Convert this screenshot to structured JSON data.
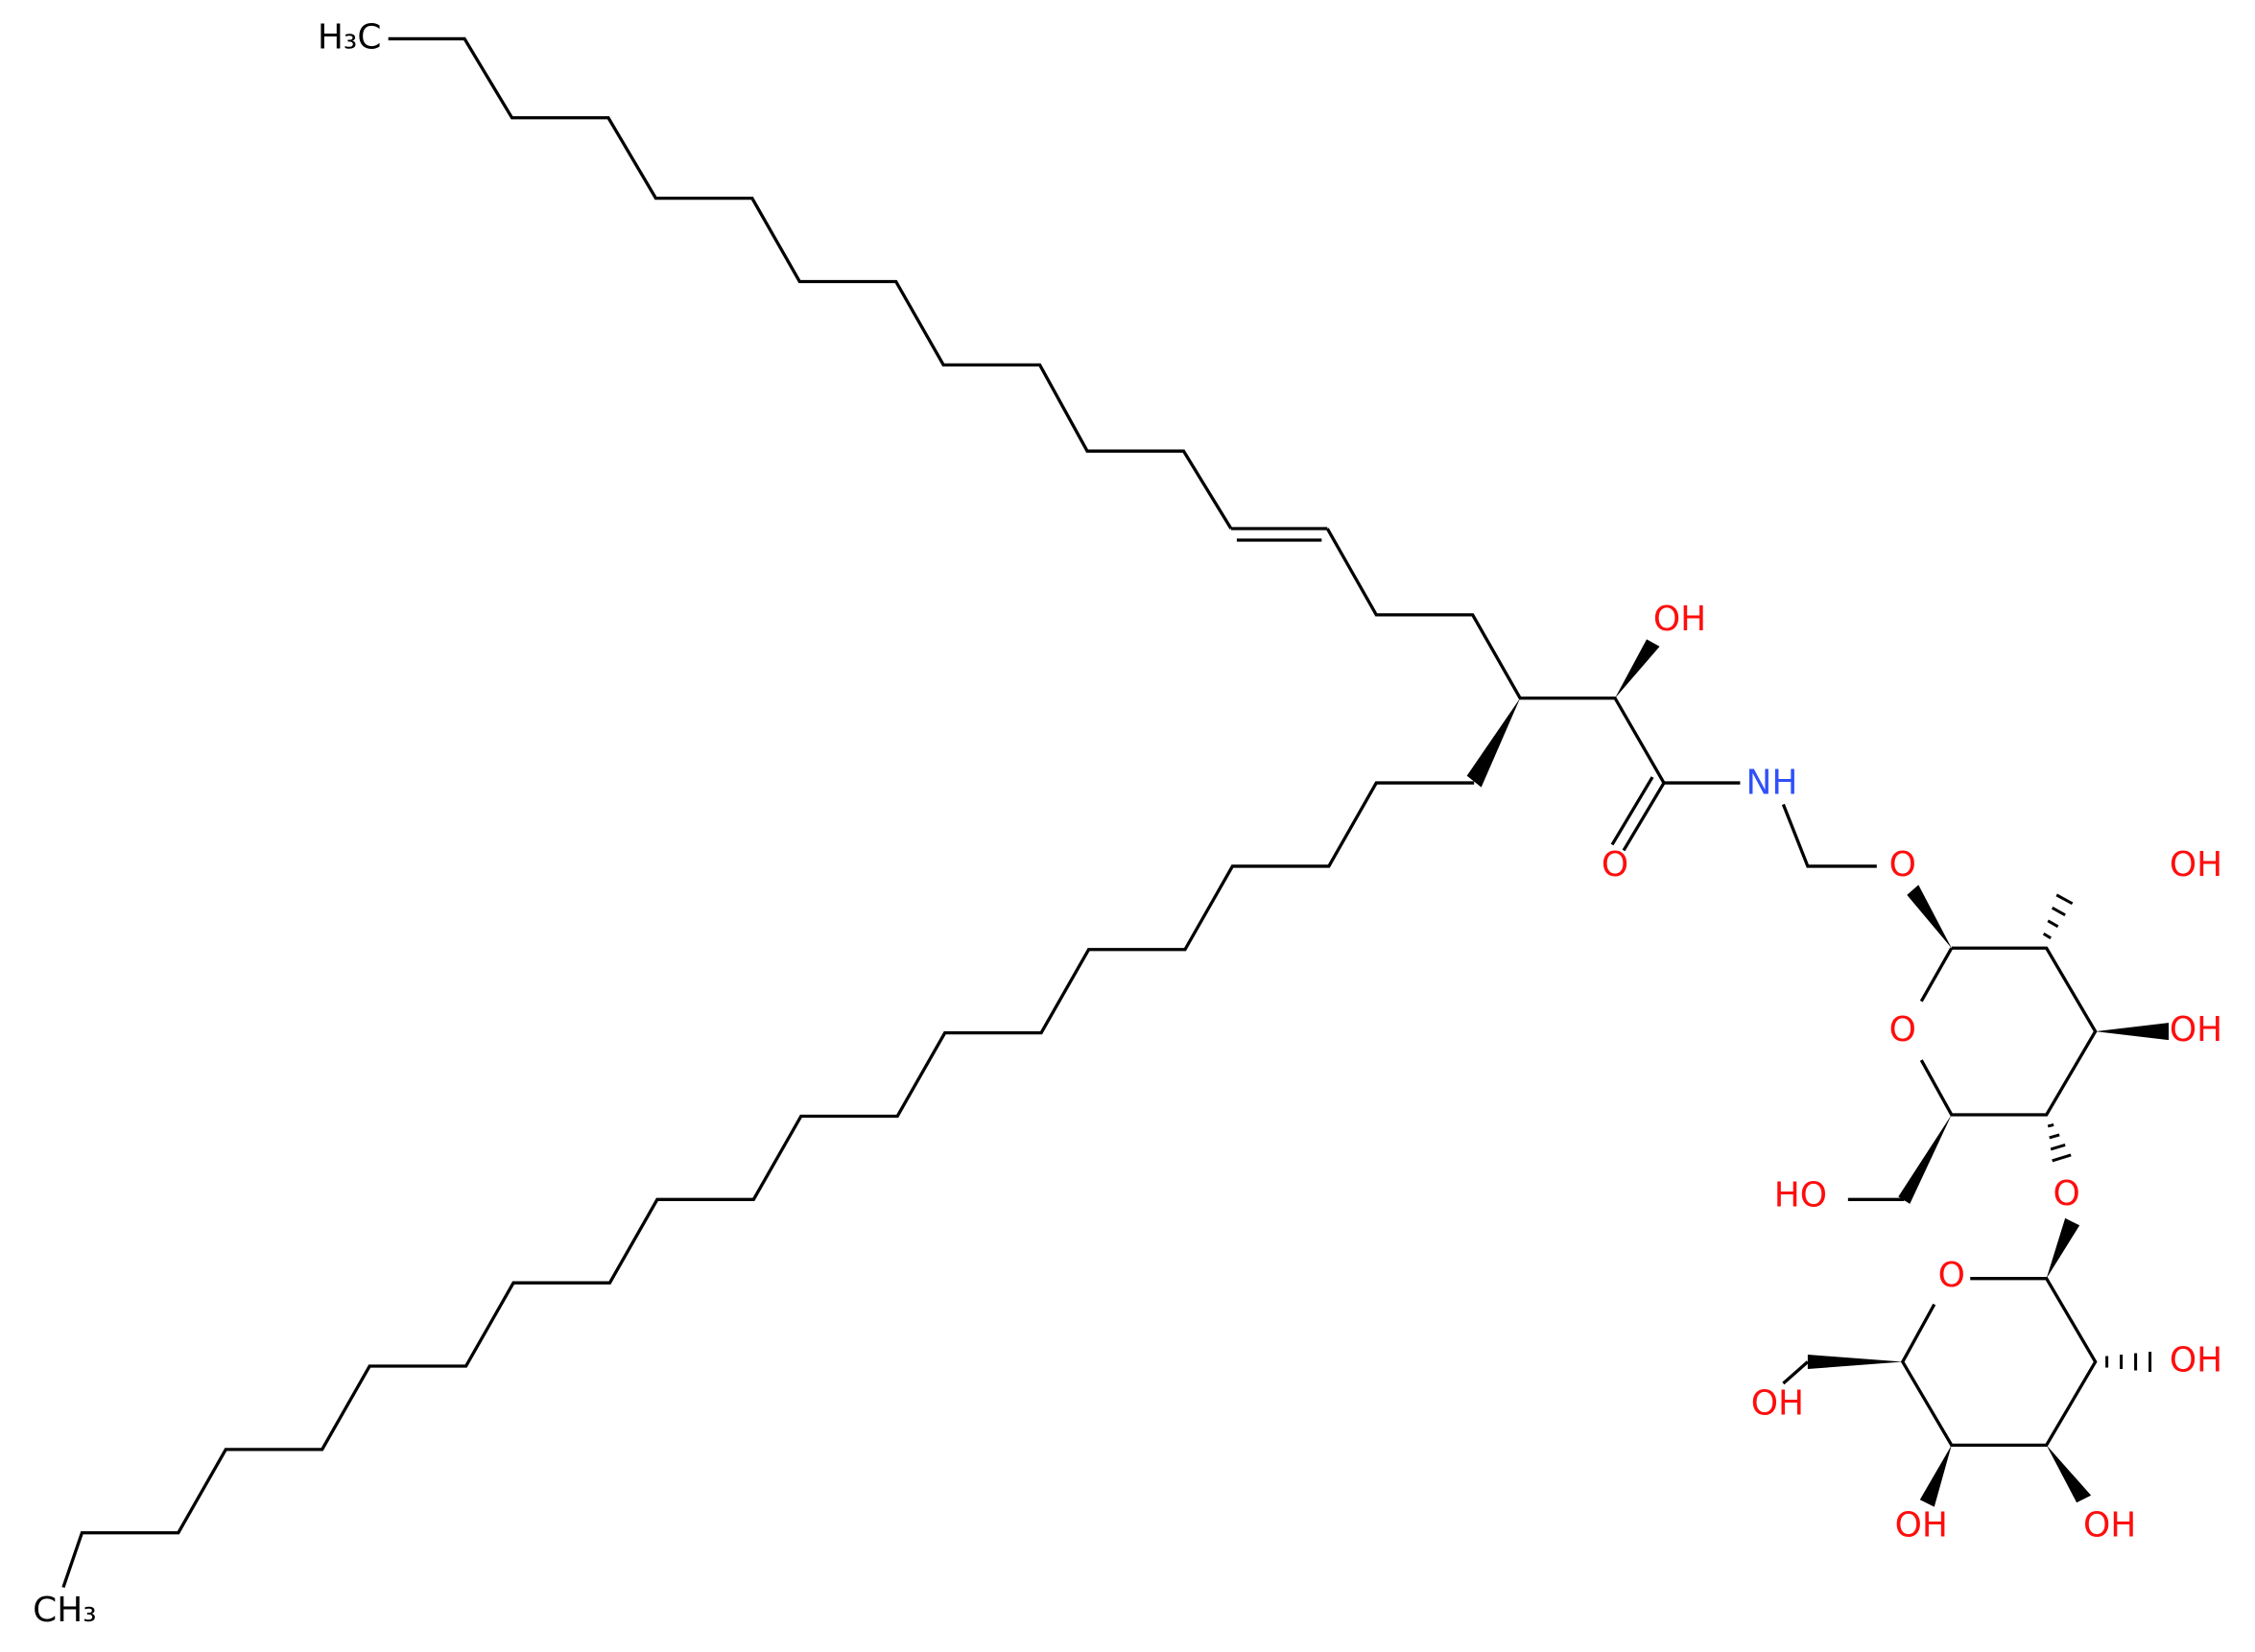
{
  "atom_labels": [
    "H₃C",
    "OH",
    "NH",
    "O",
    "O",
    "OH",
    "O",
    "OH",
    "HO",
    "O",
    "O",
    "OH",
    "OH",
    "OH",
    "OH",
    "CH₃"
  ]
}
